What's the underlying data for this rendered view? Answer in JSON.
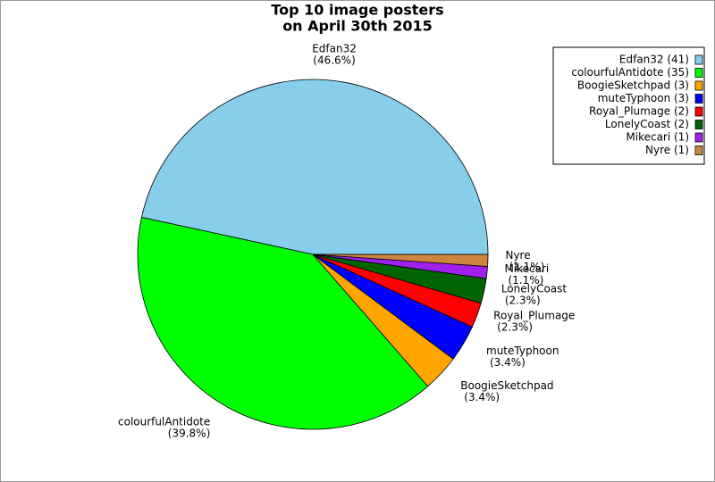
{
  "chart_data": {
    "type": "pie",
    "title": "Top 10 image posters",
    "subtitle": "on April 30th 2015",
    "categories": [
      "Edfan32",
      "colourfulAntidote",
      "BoogieSketchpad",
      "muteTyphoon",
      "Royal_Plumage",
      "LonelyCoast",
      "Mikecari",
      "Nyre"
    ],
    "values": [
      46.6,
      39.8,
      3.4,
      3.4,
      2.3,
      2.3,
      1.1,
      1.1
    ],
    "value_labels": [
      "(46.6%)",
      "(39.8%)",
      "(3.4%)",
      "(3.4%)",
      "(2.3%)",
      "(2.3%)",
      "(1.1%)",
      "(1.1%)"
    ],
    "legend_labels": [
      "Edfan32 (41)",
      "colourfulAntidote (35)",
      "BoogieSketchpad (3)",
      "muteTyphoon (3)",
      "Royal_Plumage (2)",
      "LonelyCoast (2)",
      "Mikecari (1)",
      "Nyre (1)"
    ],
    "colors": [
      "#87ceeb",
      "#00ff00",
      "#ffa500",
      "#0000ff",
      "#ff0000",
      "#006400",
      "#a020f0",
      "#cd853f"
    ],
    "legend": "upper right"
  }
}
